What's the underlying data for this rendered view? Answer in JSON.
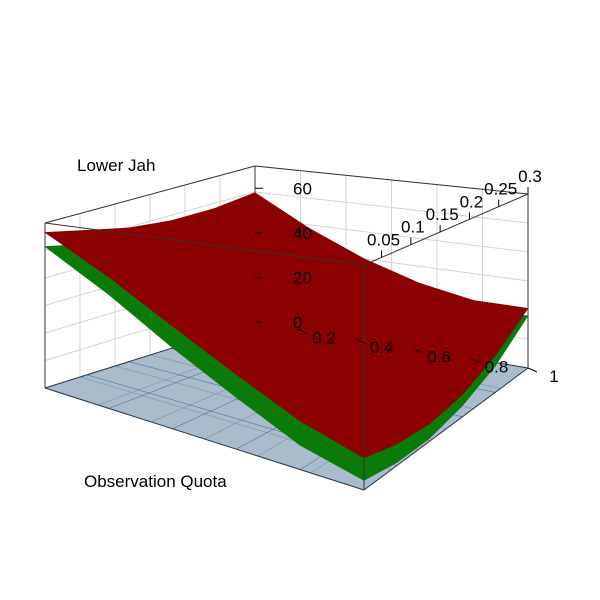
{
  "chart_data": {
    "type": "surface",
    "x_axis": {
      "label": "Lower Jah",
      "range": [
        0.02,
        0.3
      ],
      "ticks": [
        "0.05",
        "0.1",
        "0.15",
        "0.2",
        "0.25",
        "0.3"
      ]
    },
    "y_axis": {
      "label": "Observation Quota",
      "range": [
        0.05,
        1.0
      ],
      "ticks": [
        "0.2",
        "0.4",
        "0.6",
        "0.8",
        "1"
      ]
    },
    "z_axis": {
      "label": "",
      "range": [
        0,
        70
      ],
      "ticks": [
        "0",
        "20",
        "40",
        "60"
      ]
    },
    "grid": true,
    "x": [
      0.02,
      0.076,
      0.132,
      0.188,
      0.244,
      0.3
    ],
    "y": [
      0.05,
      0.24,
      0.43,
      0.62,
      0.81,
      1.0
    ],
    "series": [
      {
        "color": "#1f4f7a",
        "opacity": 0.38,
        "z": [
          [
            0,
            0,
            0,
            0,
            0,
            0
          ],
          [
            0,
            0,
            0,
            0,
            0,
            0
          ],
          [
            0,
            0,
            0,
            0,
            0,
            0
          ],
          [
            0,
            0,
            0,
            0,
            0,
            0
          ],
          [
            0,
            0,
            0,
            0,
            0,
            0
          ],
          [
            0,
            0,
            0,
            0,
            0,
            0
          ]
        ]
      },
      {
        "color": "#0a7a0a",
        "opacity": 1,
        "z": [
          [
            60,
            56,
            53,
            51,
            52,
            55
          ],
          [
            45,
            41,
            38,
            37,
            39,
            42
          ],
          [
            30,
            26,
            23,
            23,
            26,
            31
          ],
          [
            18,
            14,
            12,
            13,
            18,
            24
          ],
          [
            8,
            5,
            4,
            6,
            11,
            19
          ],
          [
            3,
            1,
            1,
            4,
            10,
            21
          ]
        ]
      },
      {
        "color": "#8b0000",
        "opacity": 1,
        "z": [
          [
            66,
            62,
            58,
            56,
            56,
            58
          ],
          [
            52,
            47,
            43,
            41,
            42,
            45
          ],
          [
            38,
            33,
            29,
            28,
            30,
            35
          ],
          [
            26,
            21,
            18,
            18,
            22,
            28
          ],
          [
            16,
            12,
            10,
            11,
            16,
            24
          ],
          [
            10,
            7,
            6,
            8,
            14,
            24
          ]
        ]
      }
    ]
  }
}
